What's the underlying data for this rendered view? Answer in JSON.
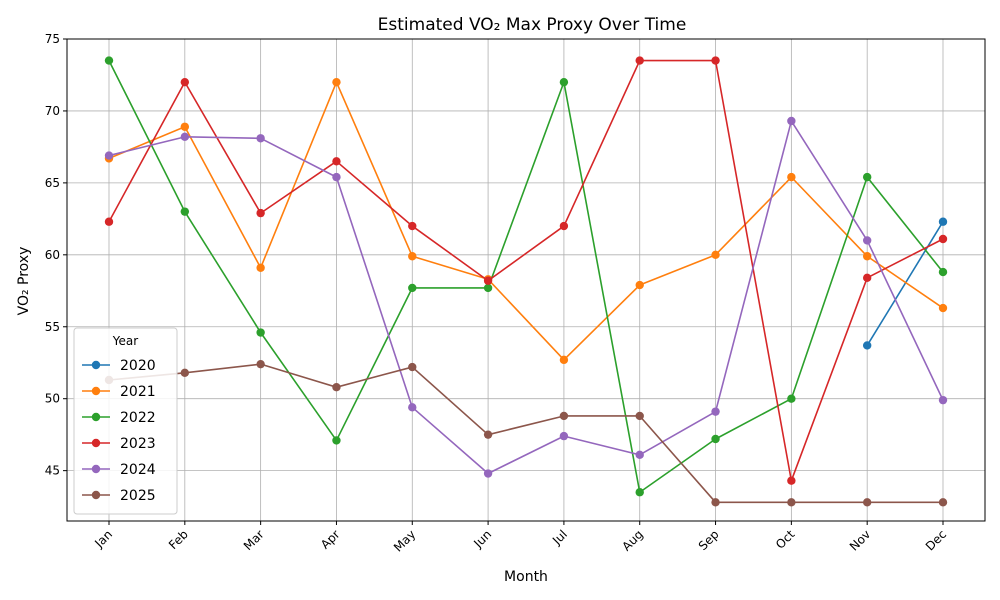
{
  "chart_data": {
    "type": "line",
    "title": "Estimated VO₂ Max Proxy Over Time",
    "xlabel": "Month",
    "ylabel": "VO₂ Proxy",
    "categories": [
      "Jan",
      "Feb",
      "Mar",
      "Apr",
      "May",
      "Jun",
      "Jul",
      "Aug",
      "Sep",
      "Oct",
      "Nov",
      "Dec"
    ],
    "ylim": [
      41.5,
      75
    ],
    "yticks": [
      45,
      50,
      55,
      60,
      65,
      70,
      75
    ],
    "grid": true,
    "legend": {
      "title": "Year",
      "placement": "lower-left"
    },
    "series": [
      {
        "name": "2020",
        "color": "#1f77b4",
        "values": [
          null,
          null,
          null,
          null,
          null,
          null,
          null,
          null,
          null,
          null,
          53.7,
          62.3
        ]
      },
      {
        "name": "2021",
        "color": "#ff7f0e",
        "values": [
          66.7,
          68.9,
          59.1,
          72.0,
          59.9,
          58.3,
          52.7,
          57.9,
          60.0,
          65.4,
          59.9,
          56.3
        ]
      },
      {
        "name": "2022",
        "color": "#2ca02c",
        "values": [
          73.5,
          63.0,
          54.6,
          47.1,
          57.7,
          57.7,
          72.0,
          43.5,
          47.2,
          50.0,
          65.4,
          58.8
        ]
      },
      {
        "name": "2023",
        "color": "#d62728",
        "values": [
          62.3,
          72.0,
          62.9,
          66.5,
          62.0,
          58.2,
          62.0,
          73.5,
          73.5,
          44.3,
          58.4,
          61.1
        ]
      },
      {
        "name": "2024",
        "color": "#9467bd",
        "values": [
          66.9,
          68.2,
          68.1,
          65.4,
          49.4,
          44.8,
          47.4,
          46.1,
          49.1,
          69.3,
          61.0,
          49.9
        ]
      },
      {
        "name": "2025",
        "color": "#8c564b",
        "values": [
          51.3,
          51.8,
          52.4,
          50.8,
          52.2,
          47.5,
          48.8,
          48.8,
          42.8,
          42.8,
          42.8,
          42.8
        ]
      }
    ]
  }
}
